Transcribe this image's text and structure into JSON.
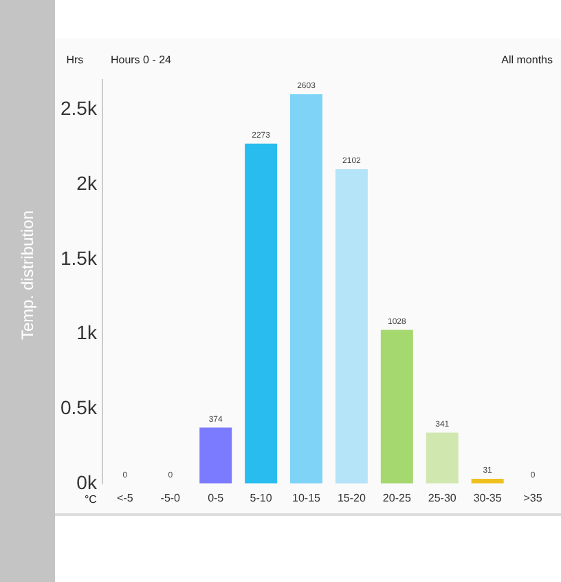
{
  "chart_data": {
    "type": "bar",
    "title": "Hours 0 - 24",
    "subtitle": "All months",
    "xlabel": "°C",
    "ylabel": "Hrs",
    "annotations": [
      "Temp. distribution"
    ],
    "categories": [
      "<-5",
      "-5-0",
      "0-5",
      "5-10",
      "10-15",
      "15-20",
      "20-25",
      "25-30",
      "30-35",
      ">35"
    ],
    "values": [
      0,
      0,
      374,
      2273,
      2603,
      2102,
      1028,
      341,
      31,
      0
    ],
    "colors": [
      "#9090ff",
      "#9090ff",
      "#7b7bff",
      "#29bdef",
      "#7fd3f7",
      "#b5e3f7",
      "#a5d86e",
      "#d0e8b0",
      "#f0c020",
      "#cccccc"
    ],
    "ylim": [
      0,
      2700
    ],
    "yticks": [
      {
        "value": 0,
        "label": "0k"
      },
      {
        "value": 500,
        "label": "0.5k"
      },
      {
        "value": 1000,
        "label": "1k"
      },
      {
        "value": 1500,
        "label": "1.5k"
      },
      {
        "value": 2000,
        "label": "2k"
      },
      {
        "value": 2500,
        "label": "2.5k"
      }
    ],
    "data_labels": true,
    "grid": false,
    "legend": false
  }
}
